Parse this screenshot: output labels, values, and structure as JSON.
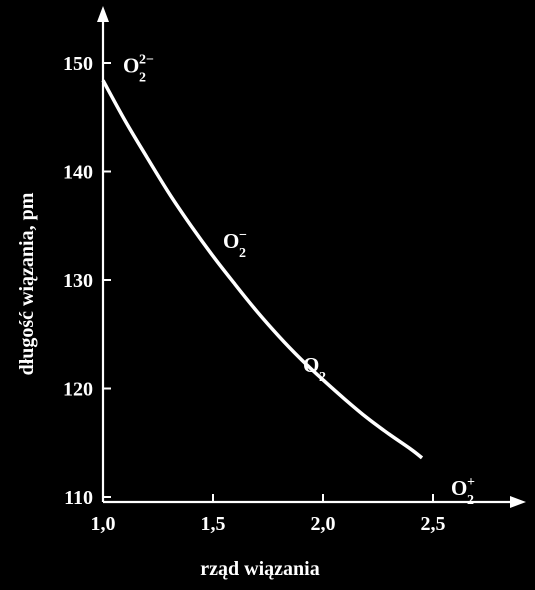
{
  "chart_data": {
    "type": "line",
    "xlabel": "rząd wiązania",
    "ylabel": "długość wiązania, pm",
    "xlim": [
      1.0,
      2.75
    ],
    "ylim": [
      110,
      155
    ],
    "x_ticks": [
      "1,0",
      "1,5",
      "2,0",
      "2,5"
    ],
    "x_tick_values": [
      1.0,
      1.5,
      2.0,
      2.5
    ],
    "y_ticks": [
      "110",
      "120",
      "130",
      "140",
      "150"
    ],
    "y_tick_values": [
      110,
      120,
      130,
      140,
      150
    ],
    "series": [
      {
        "x": [
          1.0,
          1.1,
          1.2,
          1.3,
          1.4,
          1.5,
          1.6,
          1.7,
          1.8,
          1.9,
          2.0,
          2.1,
          2.2,
          2.3,
          2.4,
          2.45
        ],
        "y": [
          148.4,
          144.7,
          141.3,
          138.0,
          135.0,
          132.2,
          129.6,
          127.1,
          124.8,
          122.7,
          120.8,
          119.0,
          117.3,
          115.8,
          114.4,
          113.6
        ]
      }
    ],
    "annotations": [
      {
        "base": "O",
        "sub": "2",
        "sup": "2−",
        "x": 1.0,
        "y": 148.4
      },
      {
        "base": "O",
        "sub": "2",
        "sup": "−",
        "x": 1.5,
        "y": 132.2
      },
      {
        "base": "O",
        "sub": "2",
        "sup": "",
        "x": 2.0,
        "y": 120.8
      },
      {
        "base": "O",
        "sub": "2",
        "sup": "+",
        "x": 2.5,
        "y": 112.6
      }
    ]
  }
}
